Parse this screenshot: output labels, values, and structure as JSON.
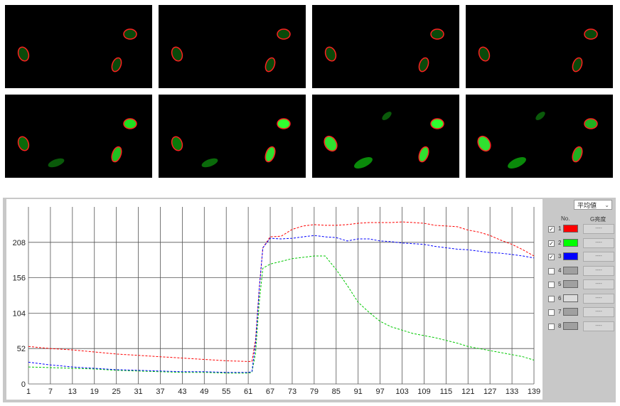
{
  "dropdown": {
    "selected": "平均値"
  },
  "legend_headers": {
    "no": "No.",
    "value": "G亮度"
  },
  "legend_rows": [
    {
      "no": "1",
      "checked": true,
      "color": "#ff0000",
      "value": "----"
    },
    {
      "no": "2",
      "checked": true,
      "color": "#00ff00",
      "value": "----"
    },
    {
      "no": "3",
      "checked": true,
      "color": "#0000ff",
      "value": "----"
    },
    {
      "no": "4",
      "checked": false,
      "color": "#a0a0a0",
      "value": "----"
    },
    {
      "no": "5",
      "checked": false,
      "color": "#a0a0a0",
      "value": "----"
    },
    {
      "no": "6",
      "checked": false,
      "color": "#dcdcdc",
      "value": "----"
    },
    {
      "no": "7",
      "checked": false,
      "color": "#a0a0a0",
      "value": "----"
    },
    {
      "no": "8",
      "checked": false,
      "color": "#a0a0a0",
      "value": "----"
    }
  ],
  "chart_data": {
    "type": "line",
    "title": "",
    "xlabel": "",
    "ylabel": "",
    "xlim": [
      1,
      139
    ],
    "ylim": [
      0,
      260
    ],
    "x_ticks": [
      "1",
      "7",
      "13",
      "19",
      "25",
      "31",
      "37",
      "43",
      "49",
      "55",
      "61",
      "67",
      "73",
      "79",
      "85",
      "91",
      "97",
      "103",
      "109",
      "115",
      "121",
      "127",
      "133",
      "139"
    ],
    "y_ticks": [
      "0",
      "52",
      "104",
      "156",
      "208"
    ],
    "grid": true,
    "series": [
      {
        "color": "#ff0000",
        "x": [
          1,
          7,
          13,
          19,
          25,
          31,
          37,
          43,
          49,
          55,
          61,
          62,
          63,
          64,
          65,
          67,
          70,
          73,
          76,
          79,
          82,
          85,
          88,
          91,
          94,
          97,
          100,
          103,
          106,
          109,
          112,
          115,
          118,
          121,
          124,
          127,
          130,
          133,
          136,
          139
        ],
        "y": [
          55,
          52,
          50,
          47,
          44,
          42,
          40,
          38,
          36,
          34,
          33,
          33,
          65,
          140,
          200,
          216,
          217,
          227,
          232,
          234,
          233,
          233,
          234,
          236,
          237,
          237,
          237,
          238,
          237,
          236,
          233,
          232,
          231,
          226,
          223,
          218,
          211,
          205,
          197,
          188
        ]
      },
      {
        "color": "#00c800",
        "x": [
          1,
          7,
          13,
          19,
          25,
          31,
          37,
          43,
          49,
          55,
          61,
          62,
          63,
          64,
          65,
          67,
          70,
          73,
          76,
          79,
          82,
          85,
          88,
          91,
          94,
          97,
          100,
          103,
          106,
          109,
          112,
          115,
          118,
          121,
          124,
          127,
          130,
          133,
          136,
          139
        ],
        "y": [
          25,
          24,
          23,
          22,
          20,
          19,
          18,
          17,
          17,
          16,
          16,
          17,
          45,
          120,
          170,
          176,
          180,
          184,
          186,
          188,
          188,
          168,
          145,
          120,
          105,
          92,
          84,
          79,
          74,
          71,
          68,
          64,
          60,
          55,
          52,
          49,
          46,
          43,
          40,
          35
        ]
      },
      {
        "color": "#0000ff",
        "x": [
          1,
          7,
          13,
          19,
          25,
          31,
          37,
          43,
          49,
          55,
          61,
          62,
          63,
          64,
          65,
          67,
          70,
          73,
          76,
          79,
          82,
          85,
          88,
          91,
          94,
          97,
          100,
          103,
          106,
          109,
          112,
          115,
          118,
          121,
          124,
          127,
          130,
          133,
          136,
          139
        ],
        "y": [
          32,
          28,
          25,
          23,
          21,
          20,
          19,
          18,
          18,
          17,
          17,
          18,
          60,
          140,
          200,
          214,
          213,
          214,
          216,
          218,
          216,
          215,
          210,
          213,
          213,
          210,
          209,
          207,
          206,
          205,
          202,
          200,
          198,
          197,
          195,
          193,
          192,
          190,
          188,
          185
        ]
      }
    ]
  }
}
